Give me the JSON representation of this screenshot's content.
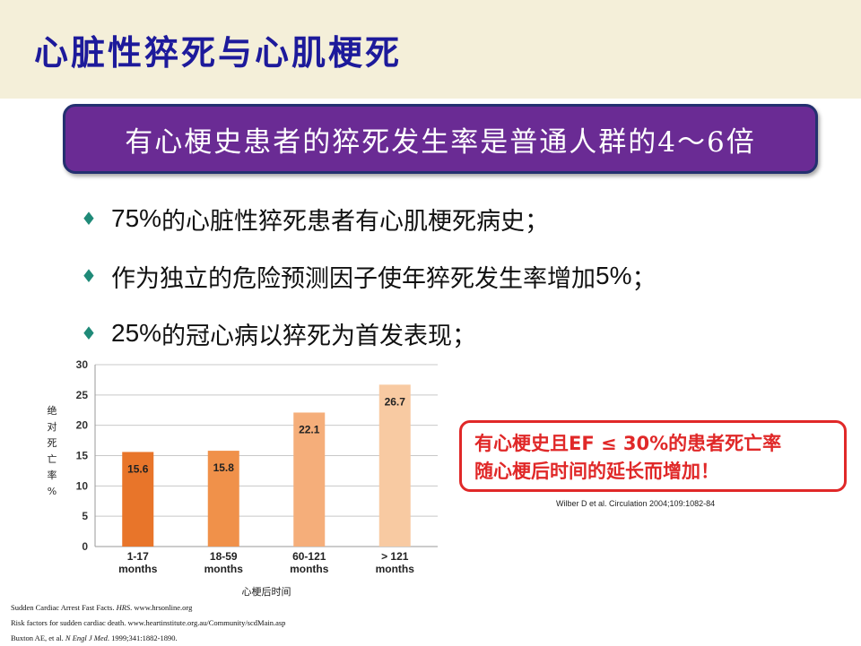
{
  "title": "心脏性猝死与心肌梗死",
  "banner": "有心梗史患者的猝死发生率是普通人群的4～6倍",
  "bullets": [
    {
      "num": "75%",
      "text": "的心脏性猝死患者有心肌梗死病史；"
    },
    {
      "pre": "作为独立的危险预测因子使年猝死发生率增加",
      "num": "5%",
      "text": "；"
    },
    {
      "num": "25%",
      "text": "的冠心病以猝死为首发表现；"
    }
  ],
  "colors": {
    "title": "#1d1a9b",
    "banner_bg": "#6a2b94",
    "diamond": "#1f8a78",
    "callout": "#e02828",
    "bars": [
      "#e8752a",
      "#f0914a",
      "#f5ae7a",
      "#f8caa2"
    ]
  },
  "chart_data": {
    "type": "bar",
    "categories": [
      "1-17 months",
      "18-59 months",
      "60-121 months",
      "> 121 months"
    ],
    "category_lines": [
      [
        "1-17",
        "months"
      ],
      [
        "18-59",
        "months"
      ],
      [
        "60-121",
        "months"
      ],
      [
        "> 121",
        "months"
      ]
    ],
    "values": [
      15.6,
      15.8,
      22.1,
      26.7
    ],
    "value_labels": [
      "15.6",
      "15.8",
      "22.1",
      "26.7"
    ],
    "ylabel": "绝对死亡率 %",
    "ylabel_chars": [
      "绝",
      "对",
      "死",
      "亡",
      "率",
      "%"
    ],
    "xlabel": "心梗后时间",
    "ylim": [
      0,
      30
    ],
    "yticks": [
      0,
      5,
      10,
      15,
      20,
      25,
      30
    ],
    "grid": true
  },
  "callout": {
    "line1": "有心梗史且EF ≤ 30%的患者死亡率",
    "line2": "随心梗后时间的延长而增加！"
  },
  "citation": "Wilber D et al. Circulation 2004;109:1082-84",
  "references": [
    {
      "before": "Sudden Cardiac Arrest Fast Facts. ",
      "italic": "HRS",
      "after": ". www.hrsonline.org"
    },
    {
      "before": "Risk factors for sudden cardiac death. www.heartinstitute.org.au/Community/scdMain.asp",
      "italic": "",
      "after": ""
    },
    {
      "before": "Buxton AE, et al. ",
      "italic": "N Engl J Med",
      "after": ". 1999;341:1882-1890."
    }
  ]
}
